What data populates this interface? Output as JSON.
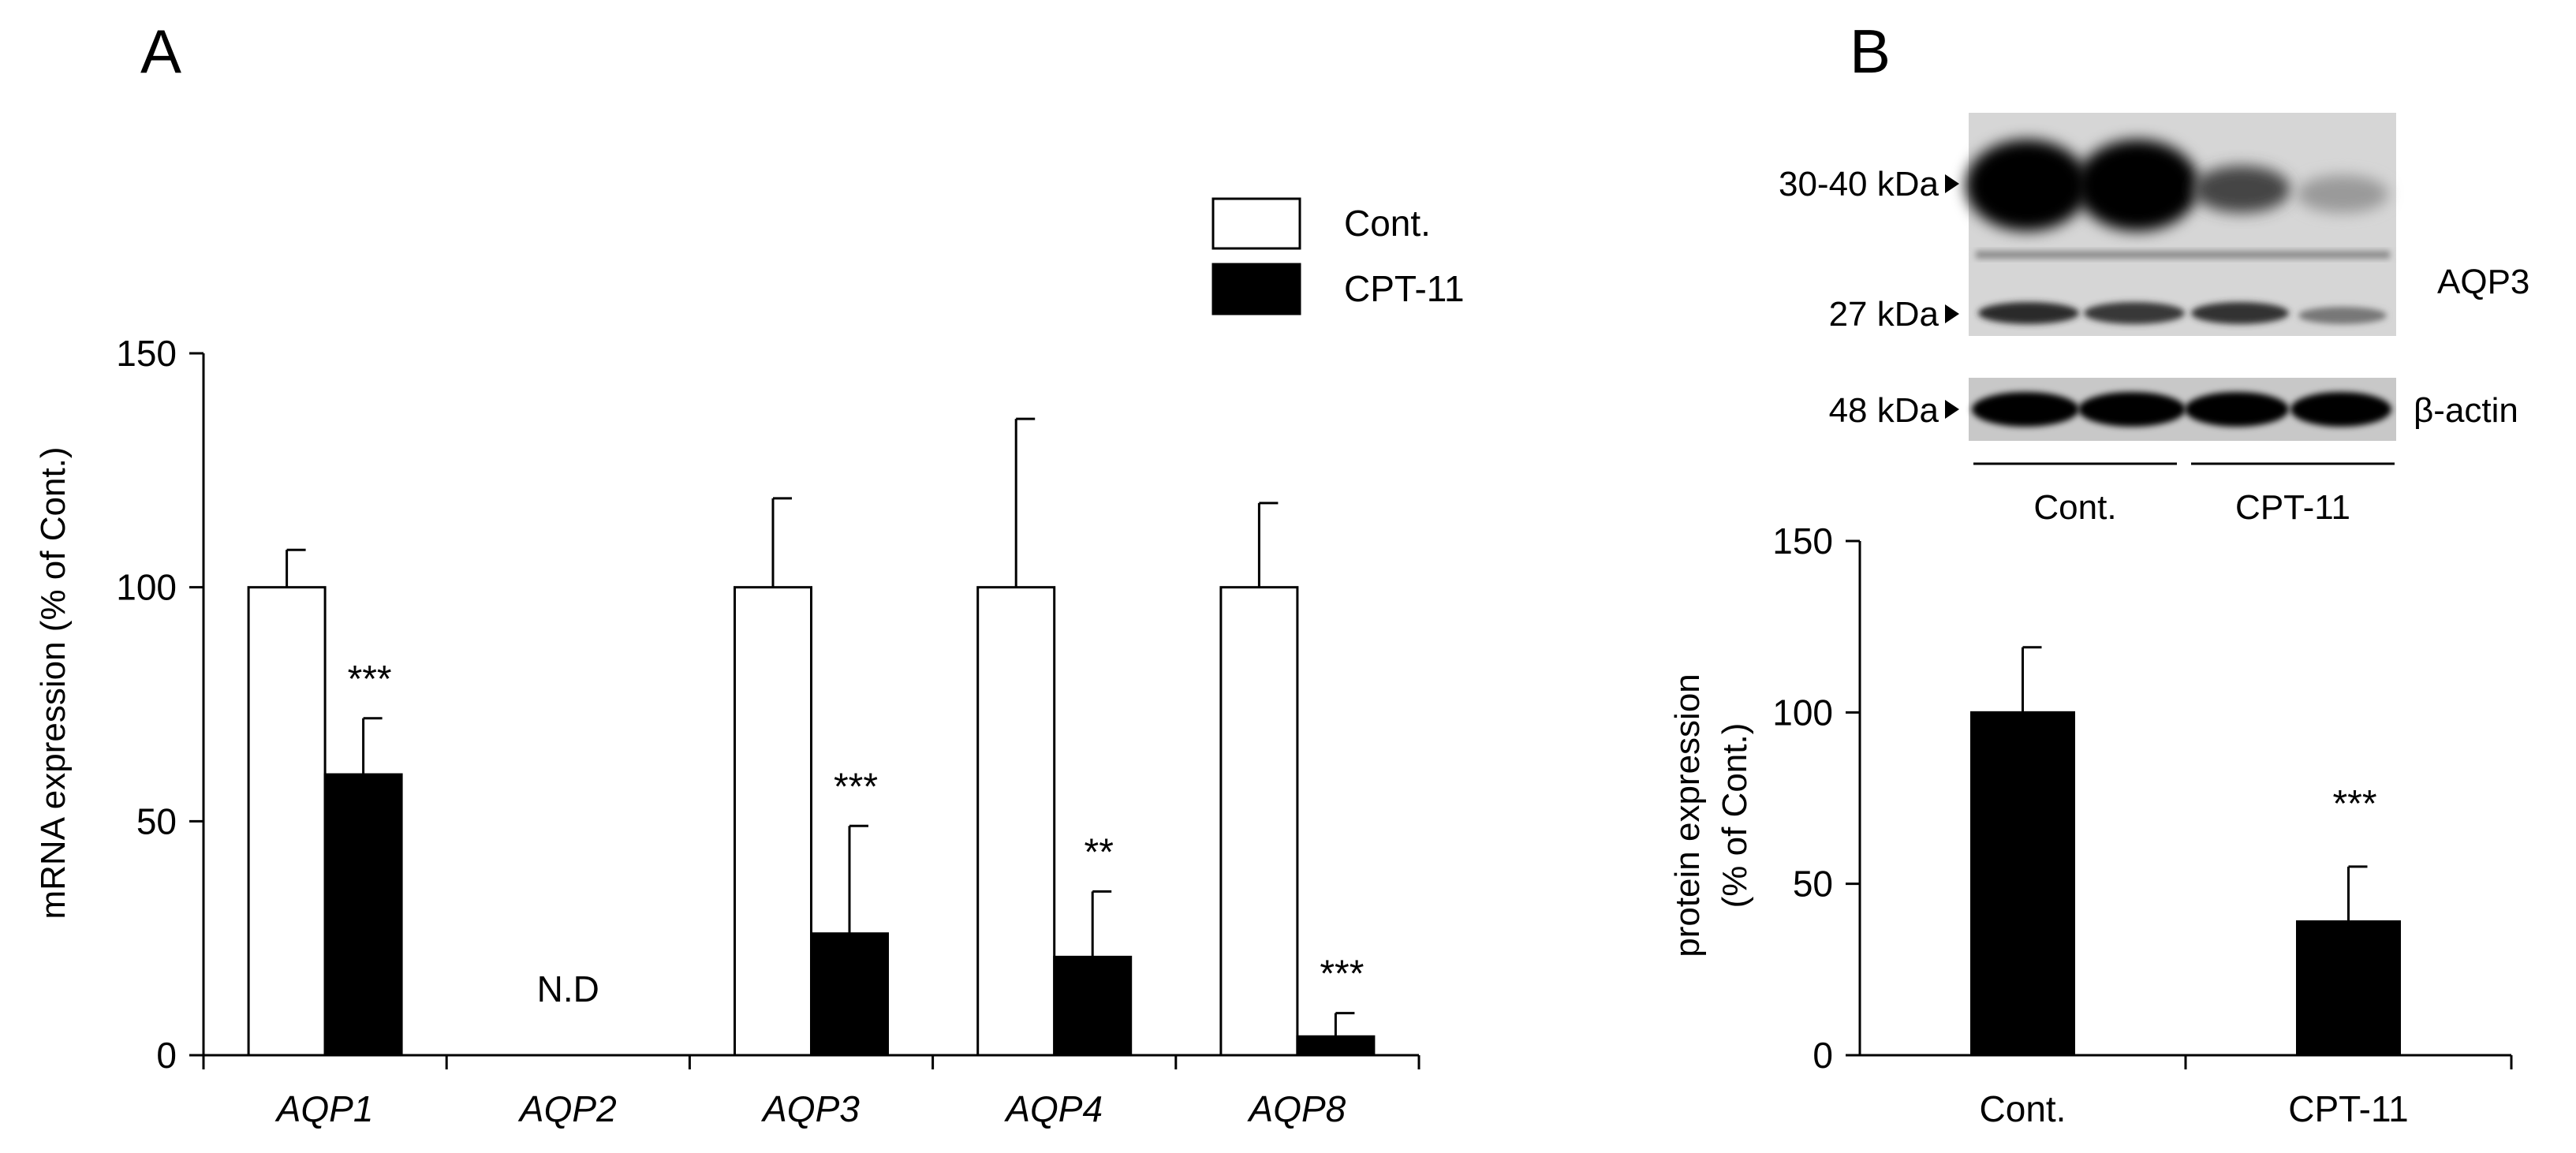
{
  "panels": {
    "a": "A",
    "b": "B"
  },
  "legend": {
    "control": "Cont.",
    "treated": "CPT-11"
  },
  "colors": {
    "control": "#ffffff",
    "treated": "#000000",
    "stroke": "#000000"
  },
  "chart_data": [
    {
      "type": "bar",
      "panel": "A",
      "ylabel": "mRNA expression (% of Cont.)",
      "xlabel": "",
      "ylim": [
        0,
        150
      ],
      "yticks": [
        0,
        50,
        100,
        150
      ],
      "categories": [
        "AQP1",
        "AQP2",
        "AQP3",
        "AQP4",
        "AQP8"
      ],
      "series": [
        {
          "name": "Cont.",
          "values": [
            100,
            null,
            100,
            100,
            100
          ],
          "errors": [
            8,
            null,
            19,
            36,
            18
          ]
        },
        {
          "name": "CPT-11",
          "values": [
            60,
            null,
            26,
            21,
            4
          ],
          "errors": [
            12,
            null,
            23,
            14,
            5
          ]
        }
      ],
      "significance": [
        "***",
        "",
        "***",
        "**",
        "***"
      ],
      "not_detected": {
        "category": "AQP2",
        "label": "N.D"
      }
    },
    {
      "type": "bar",
      "panel": "B",
      "ylabel": "protein expression",
      "ylabel2": "(% of Cont.)",
      "xlabel": "",
      "ylim": [
        0,
        150
      ],
      "yticks": [
        0,
        50,
        100,
        150
      ],
      "categories": [
        "Cont.",
        "CPT-11"
      ],
      "values": [
        100,
        39
      ],
      "errors": [
        19,
        16
      ],
      "significance": [
        "",
        "***"
      ]
    }
  ],
  "blot": {
    "markers": [
      "30-40 kDa",
      "27 kDa",
      "48 kDa"
    ],
    "protein_label": "AQP3",
    "loading_label": "β-actin",
    "groups": [
      "Cont.",
      "CPT-11"
    ]
  }
}
